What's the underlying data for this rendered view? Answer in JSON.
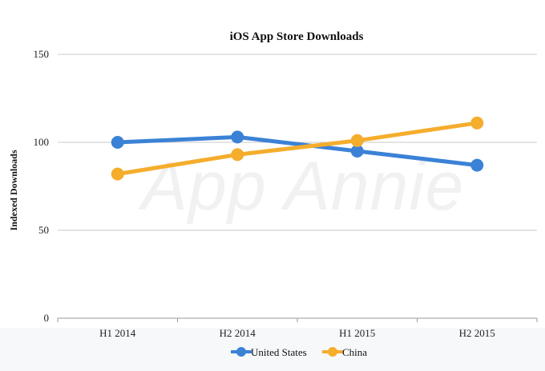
{
  "chart_data": {
    "type": "line",
    "title": "iOS App Store Downloads",
    "xlabel": "",
    "ylabel": "Indexed Downloads",
    "categories": [
      "H1 2014",
      "H2 2014",
      "H1 2015",
      "H2 2015"
    ],
    "ylim": [
      0,
      150
    ],
    "yticks": [
      0,
      50,
      100,
      150
    ],
    "grid": true,
    "legend_position": "bottom",
    "series": [
      {
        "name": "United States",
        "values": [
          100,
          103,
          95,
          87
        ],
        "color": "#3b82d6"
      },
      {
        "name": "China",
        "values": [
          82,
          93,
          101,
          111
        ],
        "color": "#f5ad2c"
      }
    ],
    "watermark": "App Annie"
  }
}
